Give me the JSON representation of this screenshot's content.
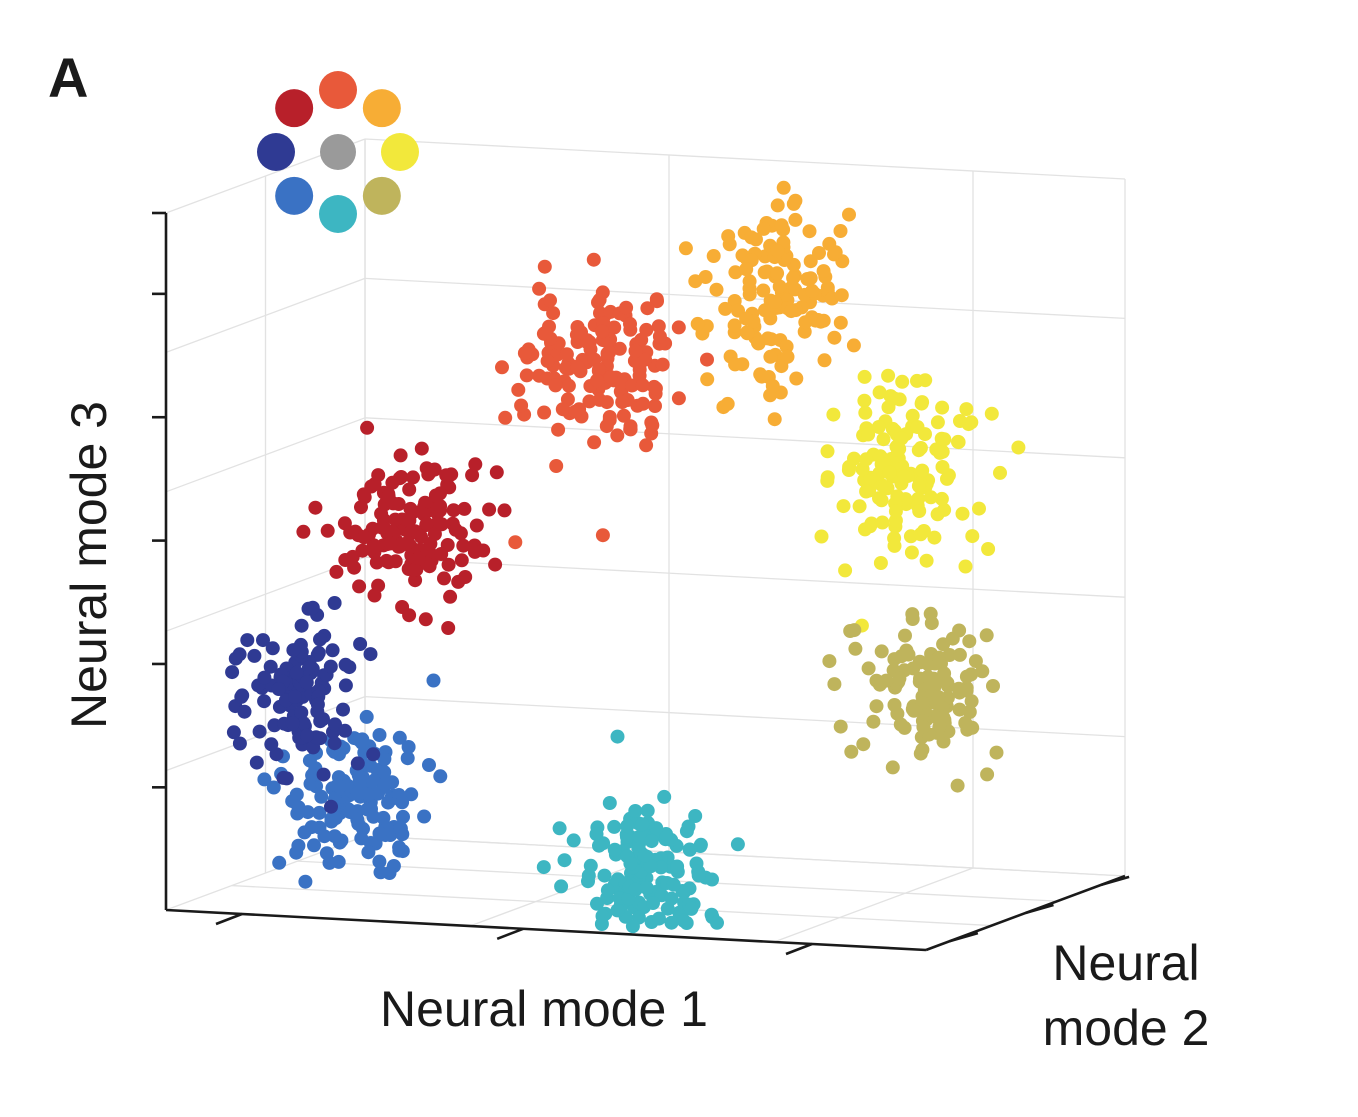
{
  "panel_label": "A",
  "chart_data": {
    "type": "scatter",
    "projection": "3d",
    "xlabel": "Neural mode 1",
    "ylabel": "Neural mode 2",
    "zlabel": "Neural mode 3",
    "tick_labels_shown": false,
    "grid": true,
    "legend": {
      "kind": "color-wheel",
      "placement": "top-left",
      "entries": [
        {
          "color": "#e8593a"
        },
        {
          "color": "#f7ad35"
        },
        {
          "color": "#f2e83b"
        },
        {
          "color": "#bfb45c"
        },
        {
          "color": "#3db6c2"
        },
        {
          "color": "#3a72c4"
        },
        {
          "color": "#2f3a93"
        },
        {
          "color": "#b8202a"
        },
        {
          "color": "#9a9a9a"
        }
      ]
    },
    "series": [
      {
        "color": "#e8593a",
        "center": [
          0.32,
          0.95,
          0.7
        ],
        "spread": [
          0.055,
          0.05,
          0.06
        ],
        "n": 150
      },
      {
        "color": "#f7ad35",
        "center": [
          0.55,
          0.98,
          0.8
        ],
        "spread": [
          0.045,
          0.05,
          0.065
        ],
        "n": 140
      },
      {
        "color": "#f2e83b",
        "center": [
          0.72,
          0.95,
          0.58
        ],
        "spread": [
          0.045,
          0.05,
          0.06
        ],
        "n": 140
      },
      {
        "color": "#bfb45c",
        "center": [
          0.75,
          0.95,
          0.25
        ],
        "spread": [
          0.045,
          0.05,
          0.045
        ],
        "n": 110
      },
      {
        "color": "#3db6c2",
        "center": [
          0.58,
          0.2,
          0.06
        ],
        "spread": [
          0.05,
          0.05,
          0.055
        ],
        "n": 150
      },
      {
        "color": "#3a72c4",
        "center": [
          0.2,
          0.2,
          0.16
        ],
        "spread": [
          0.045,
          0.05,
          0.05
        ],
        "n": 140
      },
      {
        "color": "#2f3a93",
        "center": [
          0.14,
          0.15,
          0.3
        ],
        "spread": [
          0.04,
          0.045,
          0.05
        ],
        "n": 120
      },
      {
        "color": "#b8202a",
        "center": [
          0.27,
          0.18,
          0.55
        ],
        "spread": [
          0.045,
          0.05,
          0.055
        ],
        "n": 140
      }
    ]
  }
}
